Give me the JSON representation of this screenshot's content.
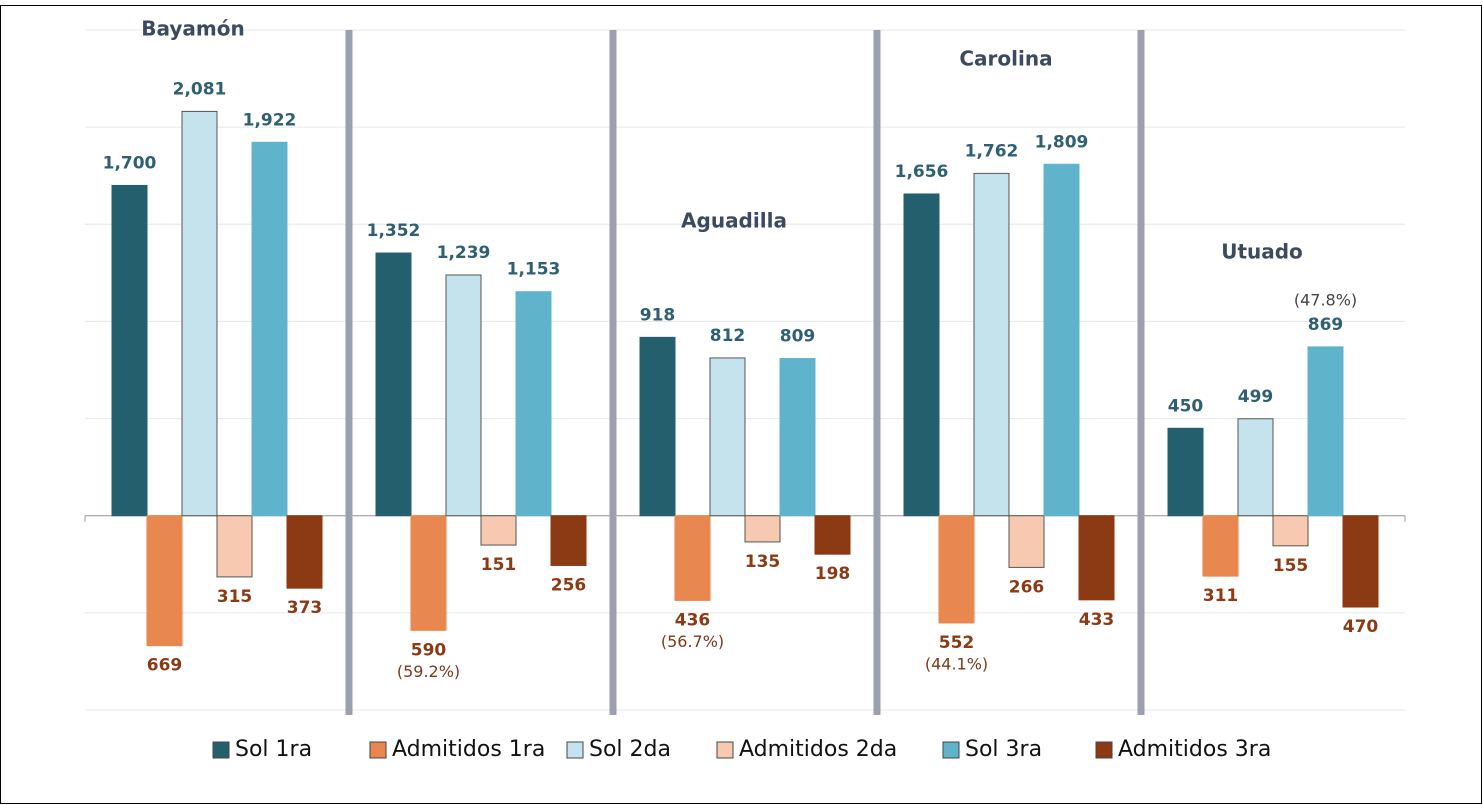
{
  "chart_data": {
    "type": "bar",
    "categories": [
      "Bayamón",
      null,
      "Aguadilla",
      "Carolina",
      "Utuado"
    ],
    "ylim": [
      -1000,
      2500
    ],
    "yticks": [
      -1000,
      -500,
      0,
      500,
      1000,
      1500,
      2000,
      2500
    ],
    "grid": true,
    "legend": "bottom",
    "series": [
      {
        "name": "Sol 1ra",
        "color": "#245f6e",
        "below_axis": false,
        "values": [
          1700,
          1352,
          918,
          1656,
          450
        ],
        "value_labels": [
          "1,700",
          "1,352",
          "918",
          "1,656",
          "450"
        ]
      },
      {
        "name": "Admitidos 1ra",
        "color": "#e8874f",
        "below_axis": true,
        "values": [
          669,
          590,
          436,
          552,
          311
        ],
        "notes": [
          null,
          "(59.2%)",
          "(56.7%)",
          "(44.1%)",
          null
        ]
      },
      {
        "name": "Sol 2da",
        "color": "#c5e3ec",
        "below_axis": false,
        "values": [
          2081,
          1239,
          812,
          1762,
          499
        ],
        "value_labels": [
          "2,081",
          "1,239",
          "812",
          "1,762",
          "499"
        ]
      },
      {
        "name": "Admitidos 2da",
        "color": "#f6c9b0",
        "below_axis": true,
        "values": [
          315,
          151,
          135,
          266,
          155
        ]
      },
      {
        "name": "Sol 3ra",
        "color": "#5fb4cc",
        "below_axis": false,
        "values": [
          1922,
          1153,
          809,
          1809,
          869
        ],
        "value_labels": [
          "1,922",
          "1,153",
          "809",
          "1,809",
          "869"
        ],
        "notes": [
          null,
          null,
          null,
          null,
          "(47.8%)"
        ]
      },
      {
        "name": "Admitidos 3ra",
        "color": "#8b3a14",
        "below_axis": true,
        "values": [
          373,
          256,
          198,
          433,
          470
        ]
      }
    ]
  }
}
